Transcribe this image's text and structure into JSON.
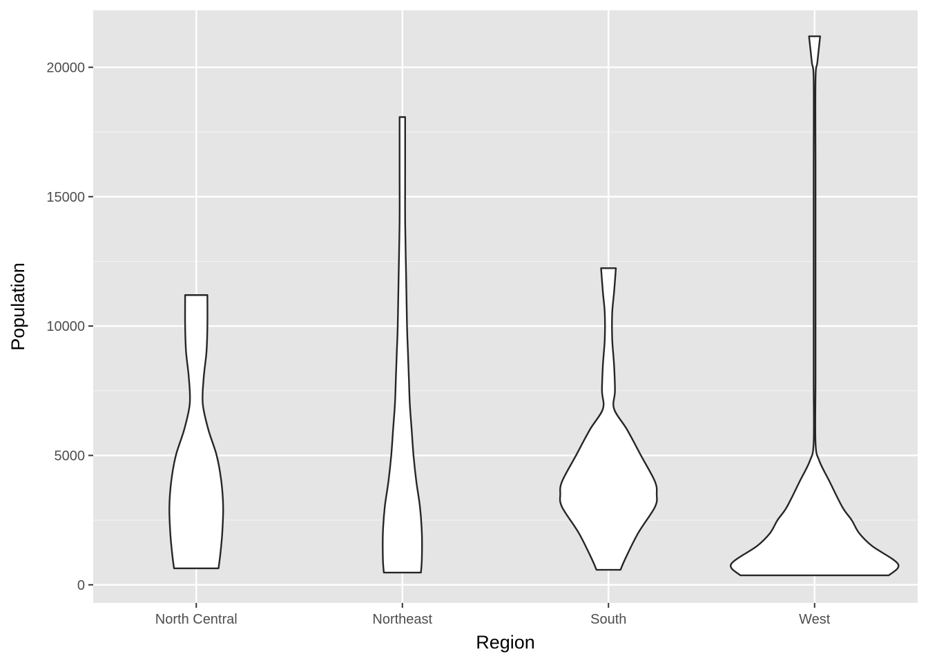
{
  "colors": {
    "panel_background": "#e5e5e5",
    "grid_major": "#ffffff",
    "grid_minor": "#f2f2f2",
    "violin_fill": "#ffffff",
    "violin_stroke": "#262626",
    "tick_text": "#4d4d4d",
    "axis_text": "#000000"
  },
  "chart_data": {
    "type": "violin",
    "title": "",
    "xlabel": "Region",
    "ylabel": "Population",
    "categories": [
      "North Central",
      "Northeast",
      "South",
      "West"
    ],
    "ylim": [
      -700,
      22200
    ],
    "yticks": [
      0,
      5000,
      10000,
      15000,
      20000
    ],
    "grid": true,
    "series": [
      {
        "name": "North Central",
        "min": 637,
        "max": 11197,
        "profile": [
          [
            637,
            0.24
          ],
          [
            1200,
            0.26
          ],
          [
            2000,
            0.28
          ],
          [
            3000,
            0.29
          ],
          [
            4000,
            0.27
          ],
          [
            5000,
            0.22
          ],
          [
            6000,
            0.13
          ],
          [
            7000,
            0.07
          ],
          [
            8000,
            0.08
          ],
          [
            9000,
            0.11
          ],
          [
            10000,
            0.12
          ],
          [
            11197,
            0.12
          ]
        ]
      },
      {
        "name": "Northeast",
        "min": 472,
        "max": 18076,
        "profile": [
          [
            472,
            0.2
          ],
          [
            1000,
            0.21
          ],
          [
            2000,
            0.21
          ],
          [
            3000,
            0.19
          ],
          [
            4000,
            0.15
          ],
          [
            5000,
            0.12
          ],
          [
            6000,
            0.1
          ],
          [
            7000,
            0.08
          ],
          [
            8000,
            0.07
          ],
          [
            9000,
            0.06
          ],
          [
            10000,
            0.05
          ],
          [
            12000,
            0.04
          ],
          [
            14000,
            0.03
          ],
          [
            16000,
            0.03
          ],
          [
            18076,
            0.03
          ]
        ]
      },
      {
        "name": "South",
        "min": 579,
        "max": 12237,
        "profile": [
          [
            579,
            0.13
          ],
          [
            1000,
            0.18
          ],
          [
            2000,
            0.32
          ],
          [
            3000,
            0.5
          ],
          [
            3500,
            0.52
          ],
          [
            4000,
            0.5
          ],
          [
            5000,
            0.35
          ],
          [
            6000,
            0.2
          ],
          [
            6800,
            0.06
          ],
          [
            7500,
            0.07
          ],
          [
            8500,
            0.06
          ],
          [
            9500,
            0.04
          ],
          [
            10500,
            0.04
          ],
          [
            11300,
            0.06
          ],
          [
            12237,
            0.08
          ]
        ]
      },
      {
        "name": "West",
        "min": 365,
        "max": 21198,
        "profile": [
          [
            365,
            0.8
          ],
          [
            800,
            0.9
          ],
          [
            1500,
            0.62
          ],
          [
            2000,
            0.48
          ],
          [
            2500,
            0.4
          ],
          [
            3000,
            0.3
          ],
          [
            4000,
            0.16
          ],
          [
            4800,
            0.05
          ],
          [
            5500,
            0.01
          ],
          [
            8000,
            0.01
          ],
          [
            12000,
            0.01
          ],
          [
            16000,
            0.01
          ],
          [
            19500,
            0.01
          ],
          [
            20200,
            0.03
          ],
          [
            21198,
            0.06
          ]
        ]
      }
    ]
  }
}
